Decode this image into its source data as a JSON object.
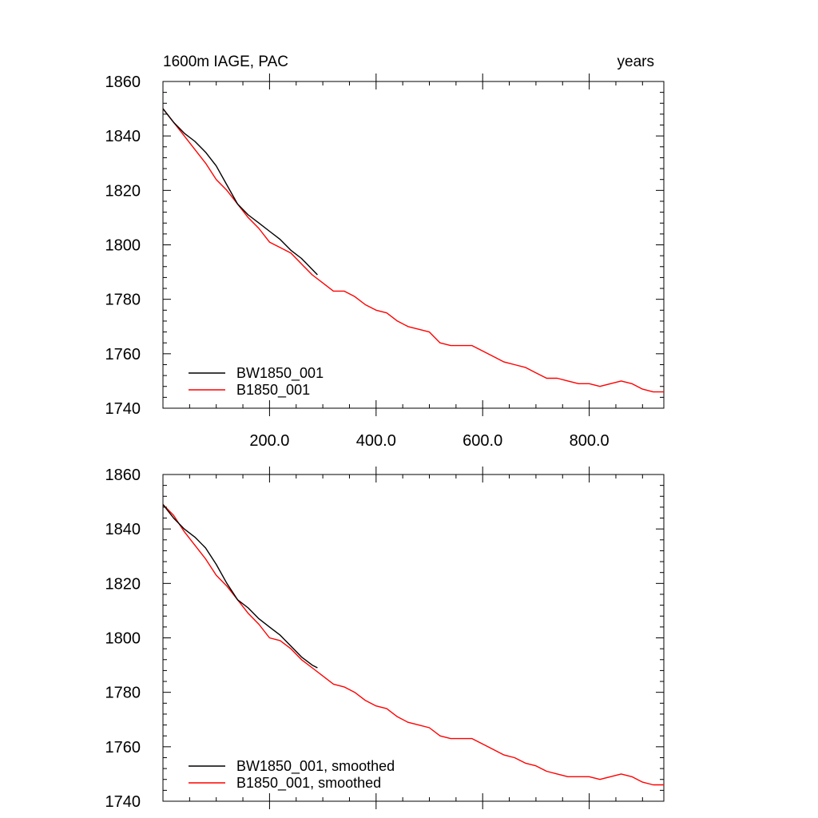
{
  "figure": {
    "title_left": "1600m IAGE, PAC",
    "title_right": "years"
  },
  "chart_data": [
    {
      "type": "line",
      "title": "1600m IAGE, PAC",
      "units": "years",
      "xlim": [
        0,
        940
      ],
      "ylim": [
        1740,
        1860
      ],
      "yticks": [
        1740,
        1760,
        1780,
        1800,
        1820,
        1840,
        1860
      ],
      "xticks": [
        200,
        400,
        600,
        800
      ],
      "xticklabels": [
        "200.0",
        "400.0",
        "600.0",
        "800.0"
      ],
      "grid": false,
      "legend": "bottom-left",
      "series": [
        {
          "name": "BW1850_001",
          "color": "#000000",
          "x": [
            0,
            20,
            40,
            60,
            80,
            100,
            120,
            140,
            160,
            180,
            200,
            220,
            240,
            260,
            280,
            290
          ],
          "y": [
            1850,
            1845,
            1841,
            1838,
            1834,
            1829,
            1822,
            1815,
            1811,
            1808,
            1805,
            1802,
            1798,
            1795,
            1791,
            1789
          ]
        },
        {
          "name": "B1850_001",
          "color": "#ff0000",
          "x": [
            0,
            20,
            40,
            60,
            80,
            100,
            120,
            140,
            160,
            180,
            200,
            220,
            240,
            260,
            280,
            300,
            320,
            340,
            360,
            380,
            400,
            420,
            440,
            460,
            480,
            500,
            520,
            540,
            560,
            580,
            600,
            620,
            640,
            660,
            680,
            700,
            720,
            740,
            760,
            780,
            800,
            820,
            840,
            860,
            880,
            900,
            920,
            940
          ],
          "y": [
            1850,
            1845,
            1840,
            1835,
            1830,
            1824,
            1820,
            1815,
            1810,
            1806,
            1801,
            1799,
            1797,
            1793,
            1789,
            1786,
            1783,
            1783,
            1781,
            1778,
            1776,
            1775,
            1772,
            1770,
            1769,
            1768,
            1764,
            1763,
            1763,
            1763,
            1761,
            1759,
            1757,
            1756,
            1755,
            1753,
            1751,
            1751,
            1750,
            1749,
            1749,
            1748,
            1749,
            1750,
            1749,
            1747,
            1746,
            1746
          ]
        }
      ]
    },
    {
      "type": "line",
      "xlim": [
        0,
        940
      ],
      "ylim": [
        1740,
        1860
      ],
      "yticks": [
        1740,
        1760,
        1780,
        1800,
        1820,
        1840,
        1860
      ],
      "xticks": [
        200,
        400,
        600,
        800
      ],
      "xticklabels": [],
      "grid": false,
      "legend": "bottom-left",
      "series": [
        {
          "name": "BW1850_001, smoothed",
          "color": "#000000",
          "x": [
            0,
            20,
            40,
            60,
            80,
            100,
            120,
            140,
            160,
            180,
            200,
            220,
            240,
            260,
            280,
            290
          ],
          "y": [
            1849,
            1844,
            1840,
            1837,
            1833,
            1827,
            1820,
            1814,
            1811,
            1807,
            1804,
            1801,
            1797,
            1793,
            1790,
            1789
          ]
        },
        {
          "name": "B1850_001, smoothed",
          "color": "#ff0000",
          "x": [
            0,
            20,
            40,
            60,
            80,
            100,
            120,
            140,
            160,
            180,
            200,
            220,
            240,
            260,
            280,
            300,
            320,
            340,
            360,
            380,
            400,
            420,
            440,
            460,
            480,
            500,
            520,
            540,
            560,
            580,
            600,
            620,
            640,
            660,
            680,
            700,
            720,
            740,
            760,
            780,
            800,
            820,
            840,
            860,
            880,
            900,
            920,
            940
          ],
          "y": [
            1849,
            1845,
            1839,
            1834,
            1829,
            1823,
            1819,
            1814,
            1809,
            1805,
            1800,
            1799,
            1796,
            1792,
            1789,
            1786,
            1783,
            1782,
            1780,
            1777,
            1775,
            1774,
            1771,
            1769,
            1768,
            1767,
            1764,
            1763,
            1763,
            1763,
            1761,
            1759,
            1757,
            1756,
            1754,
            1753,
            1751,
            1750,
            1749,
            1749,
            1749,
            1748,
            1749,
            1750,
            1749,
            1747,
            1746,
            1746
          ]
        }
      ]
    }
  ]
}
